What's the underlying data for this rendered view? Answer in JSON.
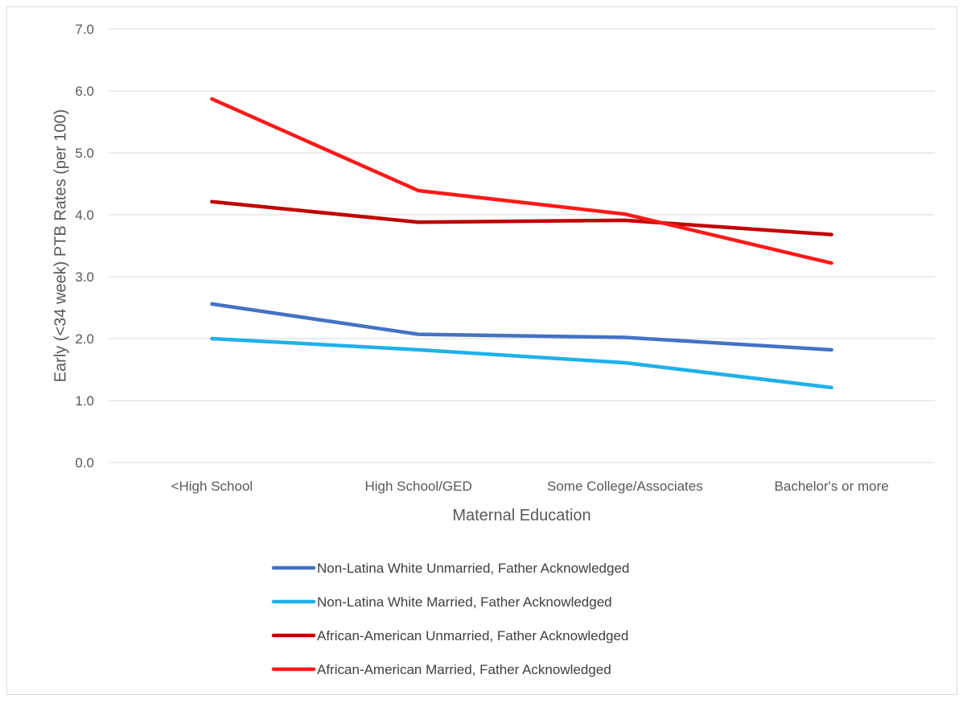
{
  "chart_data": {
    "type": "line",
    "title": "",
    "xlabel": "Maternal Education",
    "ylabel": "Early  (<34 week) PTB Rates (per 100)",
    "categories": [
      "<High School",
      "High School/GED",
      "Some College/Associates",
      "Bachelor's or more"
    ],
    "ylim": [
      0,
      7
    ],
    "yticks": [
      "0.0",
      "1.0",
      "2.0",
      "3.0",
      "4.0",
      "5.0",
      "6.0",
      "7.0"
    ],
    "grid": "horizontal",
    "legend_position": "bottom",
    "series": [
      {
        "name": "Non-Latina White Unmarried, Father Acknowledged",
        "color": "#4472C4",
        "values": [
          2.56,
          2.07,
          2.02,
          1.82
        ]
      },
      {
        "name": "Non-Latina White Married, Father Acknowledged",
        "color": "#1EB1EA",
        "values": [
          2.0,
          1.82,
          1.61,
          1.21
        ]
      },
      {
        "name": "African-American Unmarried, Father Acknowledged",
        "color": "#C00000",
        "values": [
          4.21,
          3.88,
          3.91,
          3.68
        ]
      },
      {
        "name": "African-American Married, Father Acknowledged",
        "color": "#FF1919",
        "values": [
          5.87,
          4.39,
          4.01,
          3.22
        ]
      }
    ]
  }
}
